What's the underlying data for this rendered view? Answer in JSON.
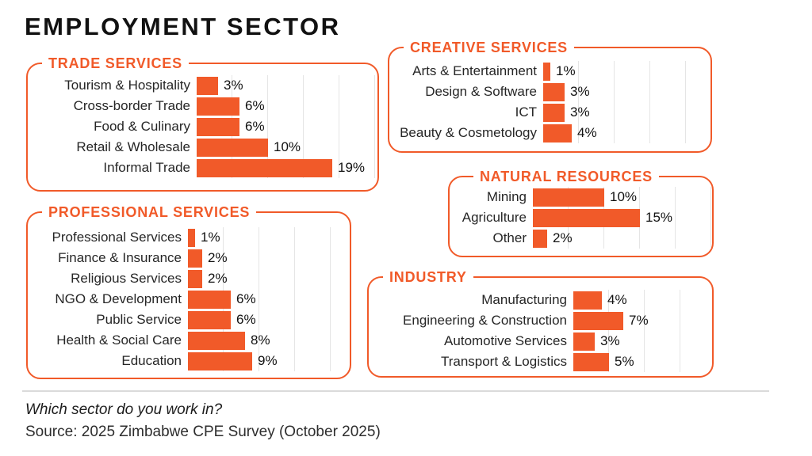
{
  "title": "EMPLOYMENT SECTOR",
  "accent_color": "#F15A29",
  "footer": {
    "question": "Which sector do you work in?",
    "source": "Source: 2025 Zimbabwe CPE Survey (October 2025)"
  },
  "chart_data": [
    {
      "type": "bar",
      "orientation": "horizontal",
      "title": "TRADE SERVICES",
      "unit": "%",
      "xlim": [
        0,
        25
      ],
      "grid_interval": 5,
      "grid": true,
      "categories": [
        "Tourism & Hospitality",
        "Cross-border Trade",
        "Food & Culinary",
        "Retail & Wholesale",
        "Informal Trade"
      ],
      "values": [
        3,
        6,
        6,
        10,
        19
      ]
    },
    {
      "type": "bar",
      "orientation": "horizontal",
      "title": "CREATIVE SERVICES",
      "unit": "%",
      "xlim": [
        0,
        25
      ],
      "grid_interval": 5,
      "grid": true,
      "categories": [
        "Arts & Entertainment",
        "Design & Software",
        "ICT",
        "Beauty & Cosmetology"
      ],
      "values": [
        1,
        3,
        3,
        4
      ]
    },
    {
      "type": "bar",
      "orientation": "horizontal",
      "title": "PROFESSIONAL SERVICES",
      "unit": "%",
      "xlim": [
        0,
        25
      ],
      "grid_interval": 5,
      "grid": true,
      "categories": [
        "Professional Services",
        "Finance & Insurance",
        "Religious Services",
        "NGO & Development",
        "Public Service",
        "Health & Social Care",
        "Education"
      ],
      "values": [
        1,
        2,
        2,
        6,
        6,
        8,
        9
      ]
    },
    {
      "type": "bar",
      "orientation": "horizontal",
      "title": "NATURAL RESOURCES",
      "unit": "%",
      "xlim": [
        0,
        25
      ],
      "grid_interval": 5,
      "grid": true,
      "categories": [
        "Mining",
        "Agriculture",
        "Other"
      ],
      "values": [
        10,
        15,
        2
      ]
    },
    {
      "type": "bar",
      "orientation": "horizontal",
      "title": "INDUSTRY",
      "unit": "%",
      "xlim": [
        0,
        25
      ],
      "grid_interval": 5,
      "grid": true,
      "categories": [
        "Manufacturing",
        "Engineering & Construction",
        "Automotive Services",
        "Transport & Logistics"
      ],
      "values": [
        4,
        7,
        3,
        5
      ]
    }
  ]
}
